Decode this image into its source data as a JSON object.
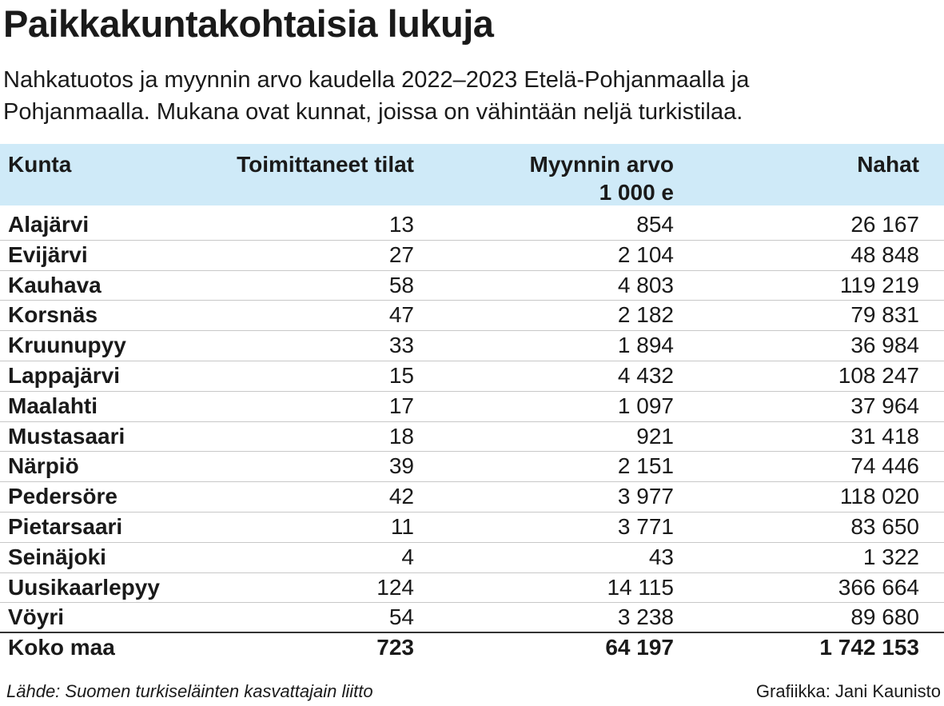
{
  "header": {
    "title": "Paikkakuntakohtaisia lukuja",
    "subtitle": [
      "Nahkatuotos ja myynnin arvo kaudella 2022–2023 Etelä-Pohjanmaalla ja",
      "Pohjanmaalla. Mukana ovat kunnat, joissa on vähintään neljä turkistilaa."
    ]
  },
  "table": {
    "columns": [
      [
        "Kunta"
      ],
      [
        "Toimittaneet tilat"
      ],
      [
        "Myynnin arvo",
        "1 000 e"
      ],
      [
        "Nahat"
      ]
    ],
    "rows": [
      [
        "Alajärvi",
        "13",
        "854",
        "26 167"
      ],
      [
        "Evijärvi",
        "27",
        "2 104",
        "48 848"
      ],
      [
        "Kauhava",
        "58",
        "4 803",
        "119 219"
      ],
      [
        "Korsnäs",
        "47",
        "2 182",
        "79 831"
      ],
      [
        "Kruunupyy",
        "33",
        "1 894",
        "36 984"
      ],
      [
        "Lappajärvi",
        "15",
        "4 432",
        "108 247"
      ],
      [
        "Maalahti",
        "17",
        "1 097",
        "37 964"
      ],
      [
        "Mustasaari",
        "18",
        "921",
        "31 418"
      ],
      [
        "Närpiö",
        "39",
        "2 151",
        "74 446"
      ],
      [
        "Pedersöre",
        "42",
        "3 977",
        "118 020"
      ],
      [
        "Pietarsaari",
        "11",
        "3 771",
        "83 650"
      ],
      [
        "Seinäjoki",
        "4",
        "43",
        "1 322"
      ],
      [
        "Uusikaarlepyy",
        "124",
        "14 115",
        "366 664"
      ],
      [
        "Vöyri",
        "54",
        "3 238",
        "89 680"
      ]
    ],
    "total": [
      "Koko maa",
      "723",
      "64 197",
      "1 742 153"
    ]
  },
  "footer": {
    "source": "Lähde: Suomen turkiseläinten kasvattajain liitto",
    "credit": "Grafiikka: Jani Kaunisto"
  }
}
